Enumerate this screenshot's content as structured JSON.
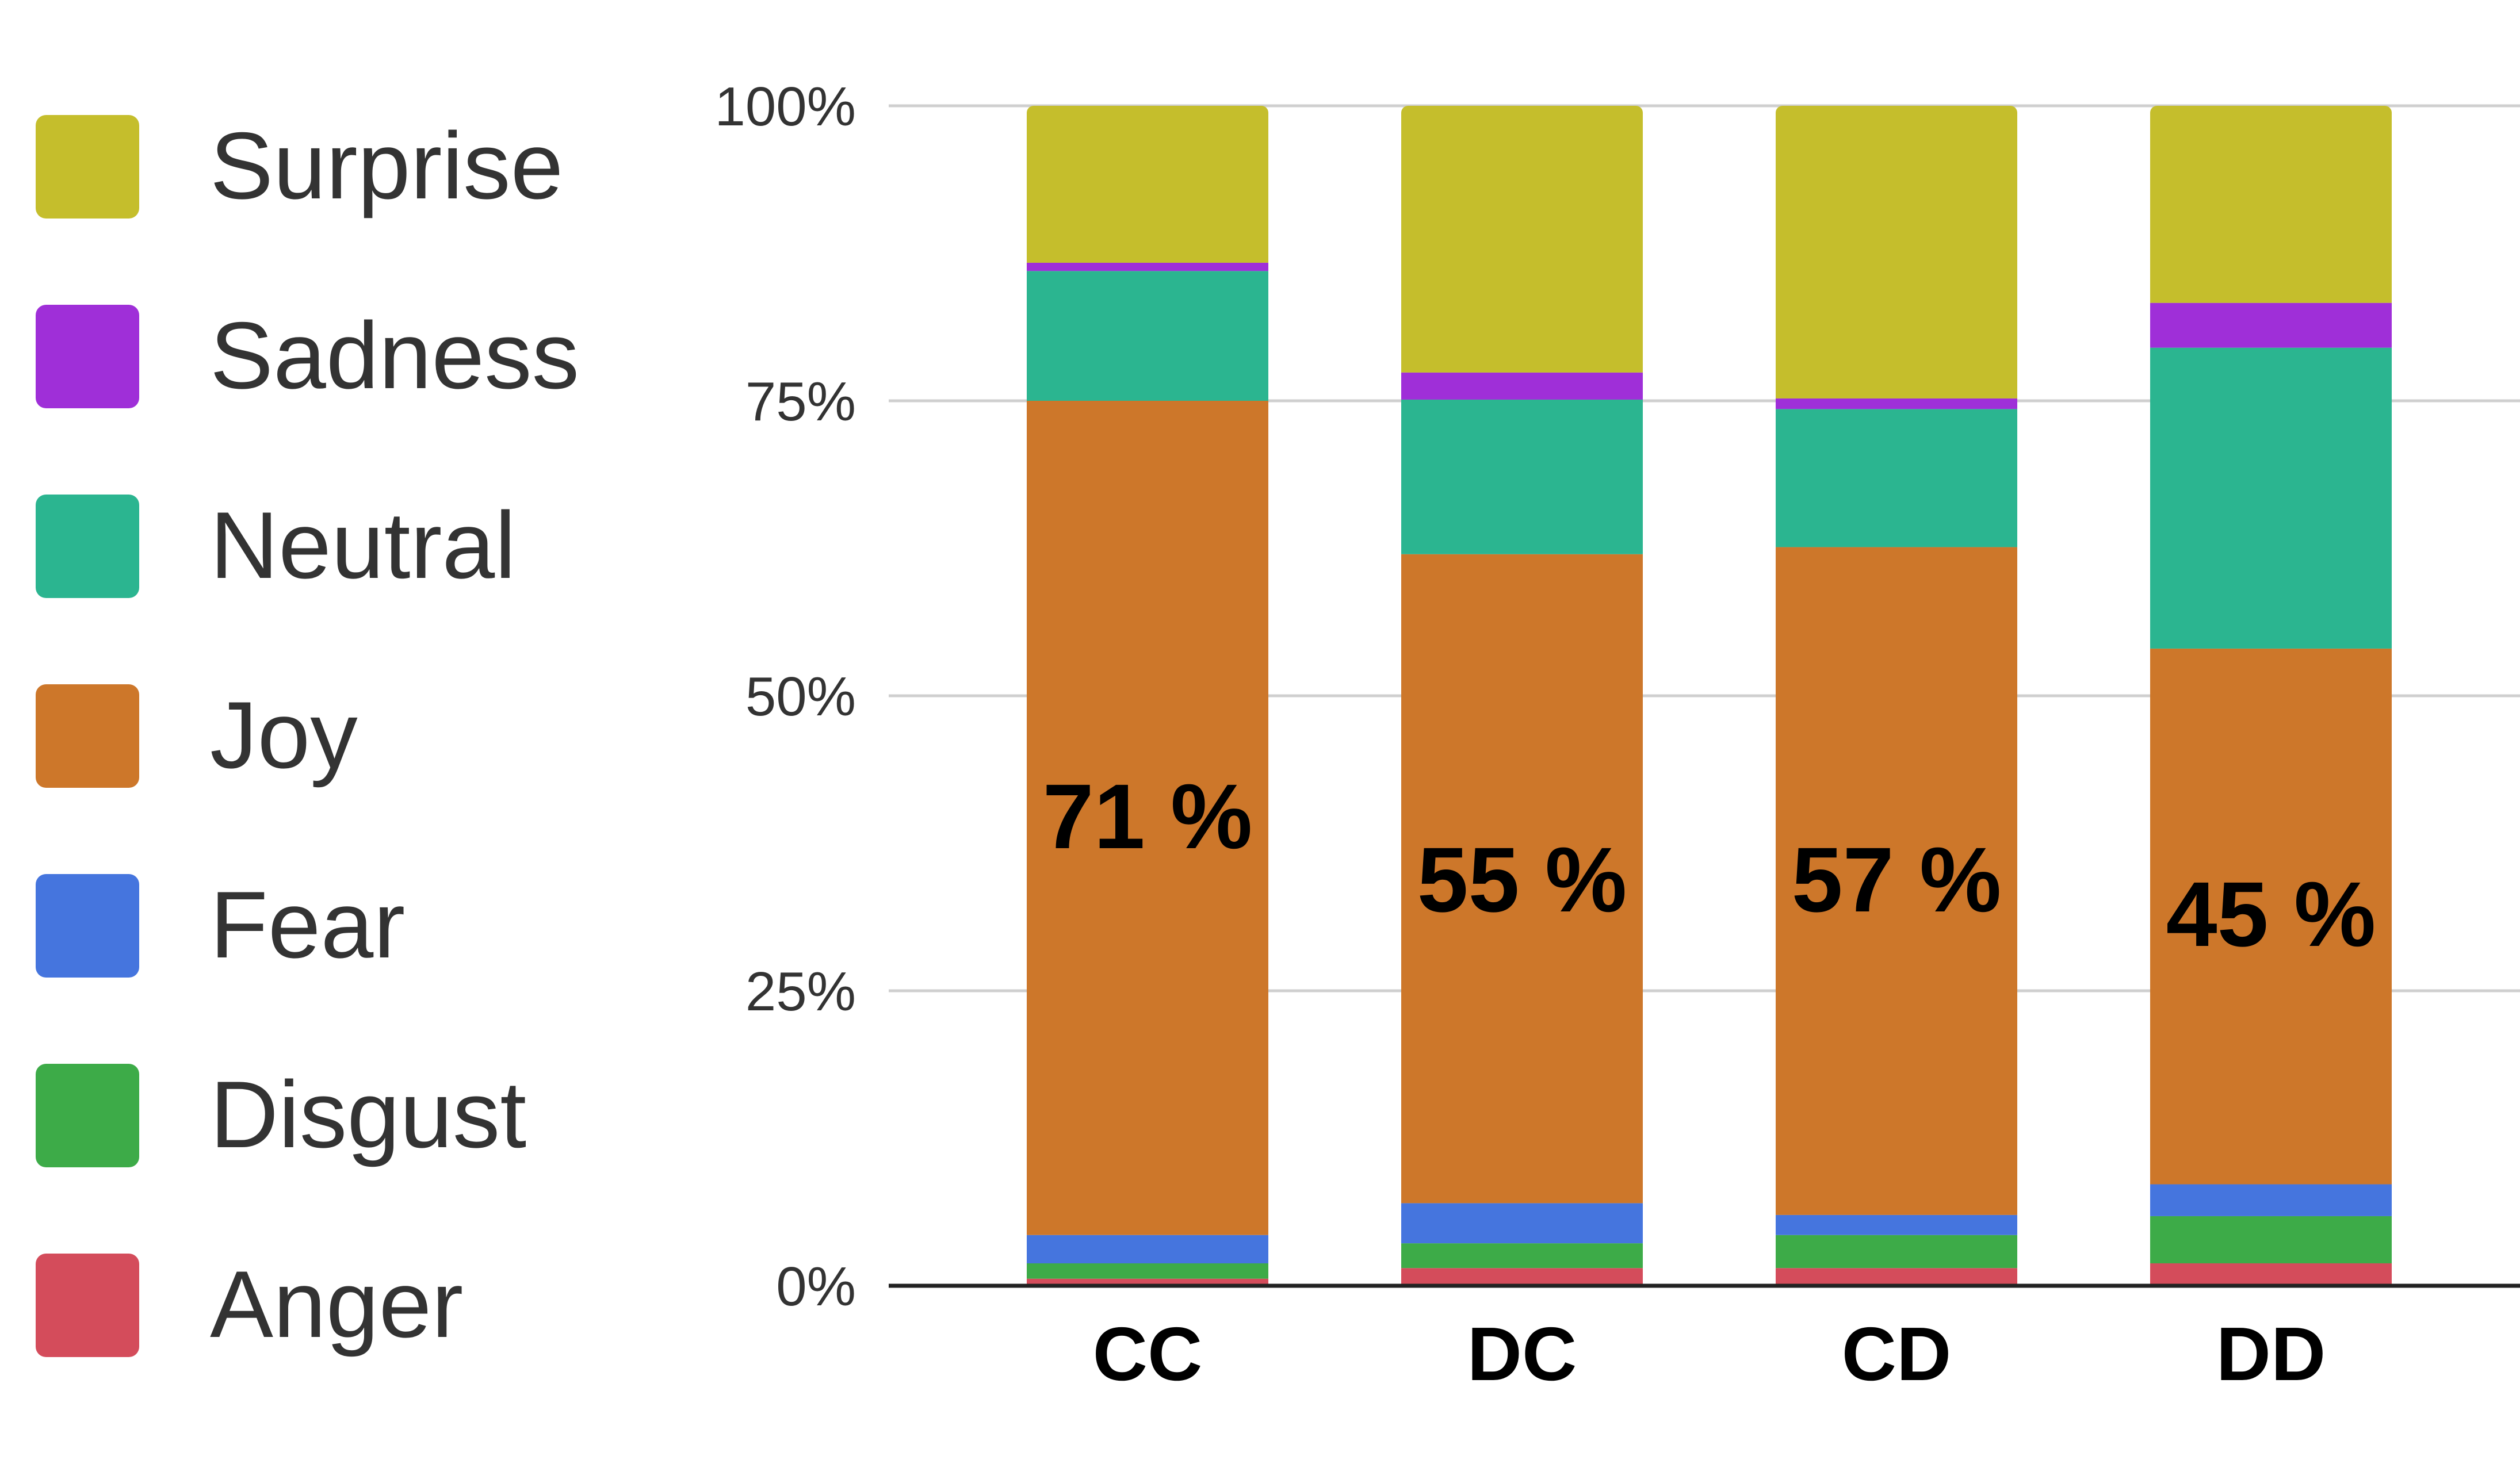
{
  "chart_data": {
    "type": "bar",
    "stacked": true,
    "percent_stacked": true,
    "categories": [
      "CC",
      "DC",
      "CD",
      "DD"
    ],
    "y_ticks": [
      "0%",
      "25%",
      "50%",
      "75%",
      "100%"
    ],
    "ylim": [
      0,
      100
    ],
    "grid": true,
    "legend_position": "left",
    "series": [
      {
        "name": "Anger",
        "color": "#d44c5b",
        "values": [
          0.6,
          1.5,
          1.5,
          1.9
        ]
      },
      {
        "name": "Disgust",
        "color": "#3dab48",
        "values": [
          1.3,
          2.1,
          2.8,
          4.0
        ]
      },
      {
        "name": "Fear",
        "color": "#4575de",
        "values": [
          2.4,
          3.4,
          1.7,
          2.7
        ]
      },
      {
        "name": "Joy",
        "color": "#cd772a",
        "values": [
          70.7,
          55.0,
          56.6,
          45.4
        ]
      },
      {
        "name": "Neutral",
        "color": "#2bb590",
        "values": [
          11.0,
          13.1,
          11.7,
          25.5
        ]
      },
      {
        "name": "Sadness",
        "color": "#9f2fd8",
        "values": [
          0.7,
          2.3,
          0.9,
          3.8
        ]
      },
      {
        "name": "Surprise",
        "color": "#c5be2c",
        "values": [
          13.3,
          22.6,
          24.8,
          16.7
        ]
      }
    ],
    "legend_order": [
      "Surprise",
      "Sadness",
      "Neutral",
      "Joy",
      "Fear",
      "Disgust",
      "Anger"
    ],
    "annotations": [
      {
        "category": "CC",
        "text": "71 %"
      },
      {
        "category": "DC",
        "text": "55 %"
      },
      {
        "category": "CD",
        "text": "57 %"
      },
      {
        "category": "DD",
        "text": "45 %"
      }
    ]
  }
}
